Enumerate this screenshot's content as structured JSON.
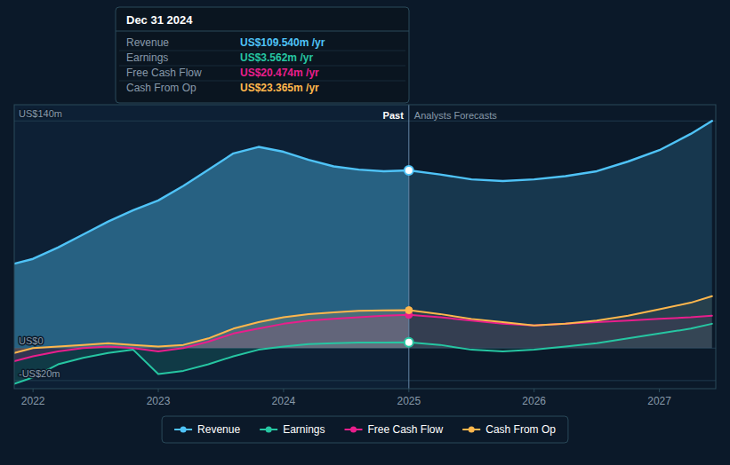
{
  "chart_data": {
    "type": "area",
    "x": [
      2021.85,
      2022.0,
      2022.2,
      2022.4,
      2022.6,
      2022.8,
      2023.0,
      2023.2,
      2023.4,
      2023.6,
      2023.8,
      2024.0,
      2024.2,
      2024.4,
      2024.6,
      2024.8,
      2025.0,
      2025.25,
      2025.5,
      2025.75,
      2026.0,
      2026.25,
      2026.5,
      2026.75,
      2027.0,
      2027.25,
      2027.42
    ],
    "series": [
      {
        "name": "Revenue",
        "color": "#4fc3f7",
        "values": [
          52,
          55,
          62,
          70,
          78,
          85,
          91,
          100,
          110,
          120,
          124,
          121,
          116,
          112,
          110,
          109,
          109.54,
          107,
          104,
          103,
          104,
          106,
          109,
          115,
          122,
          132,
          140
        ]
      },
      {
        "name": "Earnings",
        "color": "#26c6a2",
        "values": [
          -22,
          -18,
          -10,
          -6,
          -3,
          -1,
          -16,
          -14,
          -10,
          -5,
          -1,
          1,
          2.5,
          3,
          3.4,
          3.5,
          3.562,
          2,
          -1,
          -2,
          -1,
          1,
          3,
          6,
          9,
          12,
          15
        ]
      },
      {
        "name": "Free Cash Flow",
        "color": "#e91e8c",
        "values": [
          -8,
          -5,
          -2,
          0,
          1,
          0,
          -2,
          0,
          4,
          9,
          12,
          15,
          17,
          18,
          19,
          20,
          20.474,
          19,
          17,
          15,
          14,
          15,
          16,
          17,
          18,
          19,
          20
        ]
      },
      {
        "name": "Cash From Op",
        "color": "#ffb74d",
        "values": [
          -3,
          0,
          1,
          2,
          3,
          2,
          1,
          2,
          6,
          12,
          16,
          19,
          21,
          22,
          23,
          23.2,
          23.365,
          21,
          18,
          16,
          14,
          15,
          17,
          20,
          24,
          28,
          32
        ]
      }
    ],
    "xlim": [
      2021.85,
      2027.45
    ],
    "xticks": [
      2022,
      2023,
      2024,
      2025,
      2026,
      2027
    ],
    "ylim": [
      -25,
      150
    ],
    "yticks": [
      {
        "value": -20,
        "label": "-US$20m"
      },
      {
        "value": 0,
        "label": "US$0"
      },
      {
        "value": 140,
        "label": "US$140m"
      }
    ],
    "grid": true,
    "legend": "bottom",
    "divider_x": 2025.0,
    "divider_labels": [
      "Past",
      "Analysts Forecasts"
    ],
    "tooltip": {
      "title": "Dec 31 2024",
      "rows": [
        {
          "label": "Revenue",
          "color": "#4fc3f7",
          "value": "US$109.540m /yr"
        },
        {
          "label": "Earnings",
          "color": "#26c6a2",
          "value": "US$3.562m /yr"
        },
        {
          "label": "Free Cash Flow",
          "color": "#e91e8c",
          "value": "US$20.474m /yr"
        },
        {
          "label": "Cash From Op",
          "color": "#ffb74d",
          "value": "US$23.365m /yr"
        }
      ]
    }
  }
}
